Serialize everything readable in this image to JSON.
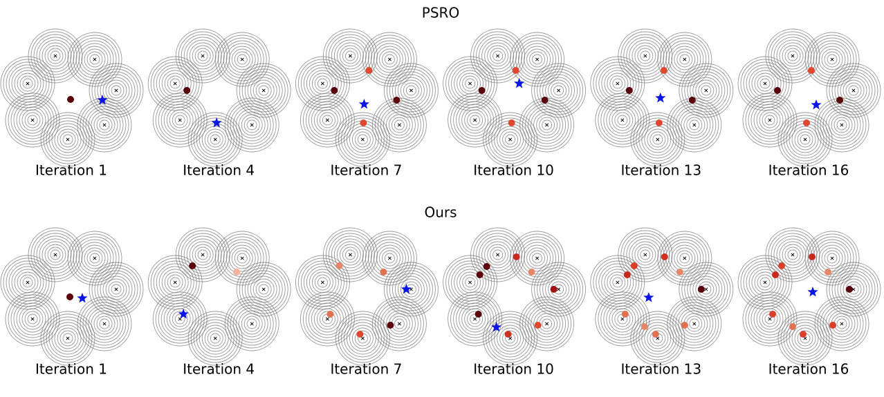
{
  "row_titles": [
    "PSRO",
    "Ours"
  ],
  "modes": {
    "x": [
      -1.15,
      1.7,
      3.25,
      2.4,
      -0.25,
      -2.8,
      -3.15
    ],
    "y": [
      2.95,
      2.7,
      0.45,
      -2.05,
      -3.1,
      -1.7,
      0.95
    ]
  },
  "chart_data": [
    {
      "type": "scatter",
      "xlabel": "Iteration 1",
      "xlim": [
        -5,
        5
      ],
      "ylim": [
        -5,
        5
      ],
      "population": {
        "x": [
          -0.05
        ],
        "y": [
          -0.2
        ],
        "colors": [
          "#5a0008"
        ]
      },
      "best_response": {
        "x": [
          2.25
        ],
        "y": [
          -0.25
        ],
        "color": "#0a14e6"
      }
    },
    {
      "type": "scatter",
      "xlabel": "Iteration 4",
      "xlim": [
        -5,
        5
      ],
      "ylim": [
        -5,
        5
      ],
      "population": {
        "x": [
          -2.3
        ],
        "y": [
          0.45
        ],
        "colors": [
          "#5a0008"
        ]
      },
      "best_response": {
        "x": [
          -0.15
        ],
        "y": [
          -1.9
        ],
        "color": "#0a14e6"
      }
    },
    {
      "type": "scatter",
      "xlabel": "Iteration 7",
      "xlim": [
        -5,
        5
      ],
      "ylim": [
        -5,
        5
      ],
      "population": {
        "x": [
          -2.3,
          0.2,
          2.2,
          -0.2
        ],
        "y": [
          0.45,
          1.9,
          -0.25,
          -1.9
        ],
        "colors": [
          "#5a0008",
          "#e0472f",
          "#5a0008",
          "#e0472f"
        ]
      },
      "best_response": {
        "x": [
          -0.15
        ],
        "y": [
          -0.55
        ],
        "color": "#0a14e6"
      }
    },
    {
      "type": "scatter",
      "xlabel": "Iteration 10",
      "xlim": [
        -5,
        5
      ],
      "ylim": [
        -5,
        5
      ],
      "population": {
        "x": [
          -2.3,
          0.15,
          2.25,
          -0.15
        ],
        "y": [
          0.45,
          1.9,
          -0.25,
          -1.9
        ],
        "colors": [
          "#5a0008",
          "#e0472f",
          "#5a0008",
          "#e0472f"
        ]
      },
      "best_response": {
        "x": [
          0.4
        ],
        "y": [
          0.95
        ],
        "color": "#0a14e6"
      }
    },
    {
      "type": "scatter",
      "xlabel": "Iteration 13",
      "xlim": [
        -5,
        5
      ],
      "ylim": [
        -5,
        5
      ],
      "population": {
        "x": [
          -2.3,
          0.2,
          2.25,
          -0.15
        ],
        "y": [
          0.45,
          1.9,
          -0.25,
          -1.9
        ],
        "colors": [
          "#5a0008",
          "#e0472f",
          "#5a0008",
          "#e0472f"
        ]
      },
      "best_response": {
        "x": [
          -0.05
        ],
        "y": [
          -0.1
        ],
        "color": "#0a14e6"
      }
    },
    {
      "type": "scatter",
      "xlabel": "Iteration 16",
      "xlim": [
        -5,
        5
      ],
      "ylim": [
        -5,
        5
      ],
      "population": {
        "x": [
          -2.25,
          0.2,
          2.25,
          -0.15
        ],
        "y": [
          0.45,
          1.9,
          -0.25,
          -1.9
        ],
        "colors": [
          "#5a0008",
          "#e0472f",
          "#5a0008",
          "#e0472f"
        ]
      },
      "best_response": {
        "x": [
          0.55
        ],
        "y": [
          -0.6
        ],
        "color": "#0a14e6"
      }
    },
    {
      "type": "scatter",
      "xlabel": "Iteration 1",
      "xlim": [
        -5,
        5
      ],
      "ylim": [
        -5,
        5
      ],
      "population": {
        "x": [
          -0.1
        ],
        "y": [
          -0.1
        ],
        "colors": [
          "#5a0008"
        ]
      },
      "best_response": {
        "x": [
          0.8
        ],
        "y": [
          -0.2
        ],
        "color": "#0a14e6"
      }
    },
    {
      "type": "scatter",
      "xlabel": "Iteration 4",
      "xlim": [
        -5,
        5
      ],
      "ylim": [
        -5,
        5
      ],
      "population": {
        "x": [
          -1.9,
          1.3
        ],
        "y": [
          2.15,
          1.7
        ],
        "colors": [
          "#5a0008",
          "#f6b39a"
        ]
      },
      "best_response": {
        "x": [
          -2.55
        ],
        "y": [
          -1.35
        ],
        "color": "#0a14e6"
      }
    },
    {
      "type": "scatter",
      "xlabel": "Iteration 7",
      "xlim": [
        -5,
        5
      ],
      "ylim": [
        -5,
        5
      ],
      "population": {
        "x": [
          -1.95,
          1.25,
          -2.6,
          -0.45,
          1.75
        ],
        "y": [
          2.15,
          1.7,
          -1.35,
          -2.8,
          -2.15
        ],
        "colors": [
          "#e8866a",
          "#e07050",
          "#e07050",
          "#e0472f",
          "#5a0008"
        ]
      },
      "best_response": {
        "x": [
          2.9
        ],
        "y": [
          0.45
        ],
        "color": "#0a14e6"
      }
    },
    {
      "type": "scatter",
      "xlabel": "Iteration 10",
      "xlim": [
        -5,
        5
      ],
      "ylim": [
        -5,
        5
      ],
      "population": {
        "x": [
          -1.95,
          0.2,
          1.3,
          2.9,
          1.75,
          -0.4,
          -2.55,
          -2.45
        ],
        "y": [
          2.1,
          2.8,
          1.7,
          0.45,
          -2.15,
          -2.8,
          -1.35,
          1.5
        ],
        "colors": [
          "#5a0008",
          "#c8281e",
          "#e8866a",
          "#a01010",
          "#e0472f",
          "#d03020",
          "#5a0008",
          "#5a0008"
        ]
      },
      "best_response": {
        "x": [
          -1.25
        ],
        "y": [
          -2.3
        ],
        "color": "#0a14e6"
      }
    },
    {
      "type": "scatter",
      "xlabel": "Iteration 13",
      "xlim": [
        -5,
        5
      ],
      "ylim": [
        -5,
        5
      ],
      "population": {
        "x": [
          -1.95,
          -2.45,
          0.25,
          1.35,
          2.9,
          1.7,
          -0.4,
          -1.2,
          -2.6
        ],
        "y": [
          2.15,
          1.5,
          2.8,
          1.7,
          0.45,
          -2.15,
          -2.8,
          -2.25,
          -1.35
        ],
        "colors": [
          "#d8402a",
          "#c8281e",
          "#d03020",
          "#e8866a",
          "#5a0008",
          "#e07050",
          "#e07050",
          "#e8866a",
          "#e07050"
        ]
      },
      "best_response": {
        "x": [
          -0.9
        ],
        "y": [
          -0.15
        ],
        "color": "#0a14e6"
      }
    },
    {
      "type": "scatter",
      "xlabel": "Iteration 16",
      "xlim": [
        -5,
        5
      ],
      "ylim": [
        -5,
        5
      ],
      "population": {
        "x": [
          -1.95,
          -2.4,
          0.25,
          1.4,
          2.95,
          1.75,
          -0.4,
          -1.15,
          -2.6
        ],
        "y": [
          2.15,
          1.5,
          2.8,
          1.7,
          0.45,
          -2.15,
          -2.8,
          -2.25,
          -1.35
        ],
        "colors": [
          "#d8402a",
          "#c8281e",
          "#c8281e",
          "#e8866a",
          "#5a0008",
          "#d8402a",
          "#d8402a",
          "#e07050",
          "#d8402a"
        ]
      },
      "best_response": {
        "x": [
          0.3
        ],
        "y": [
          0.25
        ],
        "color": "#0a14e6"
      }
    }
  ]
}
